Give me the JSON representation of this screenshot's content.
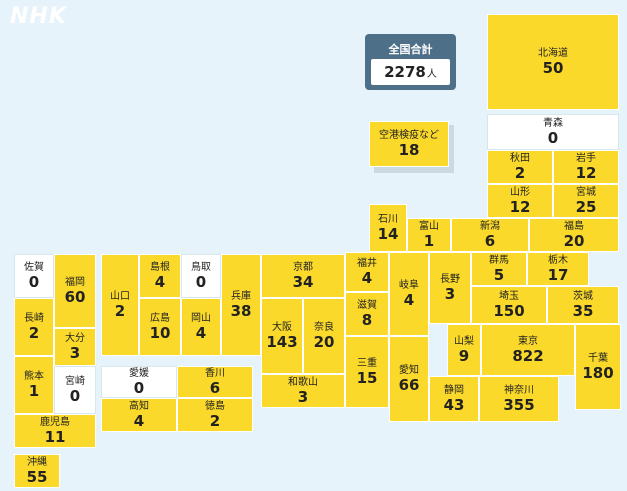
{
  "logo": "NHK",
  "total": {
    "label": "全国合計",
    "value": "2278",
    "unit": "人"
  },
  "colors": {
    "nonzero": "#fad92b",
    "zero": "#ffffff",
    "background": "#e6f3fb",
    "total_header": "#4e6f88"
  },
  "prefectures": {
    "hokkaido": {
      "name": "北海道",
      "count": "50"
    },
    "aomori": {
      "name": "青森",
      "count": "0"
    },
    "akita": {
      "name": "秋田",
      "count": "2"
    },
    "iwate": {
      "name": "岩手",
      "count": "12"
    },
    "yamagata": {
      "name": "山形",
      "count": "12"
    },
    "miyagi": {
      "name": "宮城",
      "count": "25"
    },
    "airport": {
      "name": "空港検疫など",
      "count": "18"
    },
    "ishikawa": {
      "name": "石川",
      "count": "14"
    },
    "toyama": {
      "name": "富山",
      "count": "1"
    },
    "niigata": {
      "name": "新潟",
      "count": "6"
    },
    "fukushima": {
      "name": "福島",
      "count": "20"
    },
    "saga": {
      "name": "佐賀",
      "count": "0"
    },
    "fukuoka": {
      "name": "福岡",
      "count": "60"
    },
    "yamaguchi": {
      "name": "山口",
      "count": "2"
    },
    "shimane": {
      "name": "島根",
      "count": "4"
    },
    "tottori": {
      "name": "鳥取",
      "count": "0"
    },
    "hyogo": {
      "name": "兵庫",
      "count": "38"
    },
    "kyoto": {
      "name": "京都",
      "count": "34"
    },
    "fukui": {
      "name": "福井",
      "count": "4"
    },
    "gifu": {
      "name": "岐阜",
      "count": "4"
    },
    "nagano": {
      "name": "長野",
      "count": "3"
    },
    "gunma": {
      "name": "群馬",
      "count": "5"
    },
    "tochigi": {
      "name": "栃木",
      "count": "17"
    },
    "nagasaki": {
      "name": "長崎",
      "count": "2"
    },
    "oita": {
      "name": "大分",
      "count": "3"
    },
    "hiroshima": {
      "name": "広島",
      "count": "10"
    },
    "okayama": {
      "name": "岡山",
      "count": "4"
    },
    "osaka": {
      "name": "大阪",
      "count": "143"
    },
    "nara": {
      "name": "奈良",
      "count": "20"
    },
    "shiga": {
      "name": "滋賀",
      "count": "8"
    },
    "saitama": {
      "name": "埼玉",
      "count": "150"
    },
    "ibaraki": {
      "name": "茨城",
      "count": "35"
    },
    "yamanashi": {
      "name": "山梨",
      "count": "9"
    },
    "tokyo": {
      "name": "東京",
      "count": "822"
    },
    "chiba": {
      "name": "千葉",
      "count": "180"
    },
    "kumamoto": {
      "name": "熊本",
      "count": "1"
    },
    "miyazaki": {
      "name": "宮崎",
      "count": "0"
    },
    "ehime": {
      "name": "愛媛",
      "count": "0"
    },
    "kagawa": {
      "name": "香川",
      "count": "6"
    },
    "mie": {
      "name": "三重",
      "count": "15"
    },
    "aichi": {
      "name": "愛知",
      "count": "66"
    },
    "wakayama": {
      "name": "和歌山",
      "count": "3"
    },
    "kochi": {
      "name": "高知",
      "count": "4"
    },
    "tokushima": {
      "name": "徳島",
      "count": "2"
    },
    "shizuoka": {
      "name": "静岡",
      "count": "43"
    },
    "kanagawa": {
      "name": "神奈川",
      "count": "355"
    },
    "kagoshima": {
      "name": "鹿児島",
      "count": "11"
    },
    "okinawa": {
      "name": "沖縄",
      "count": "55"
    }
  }
}
